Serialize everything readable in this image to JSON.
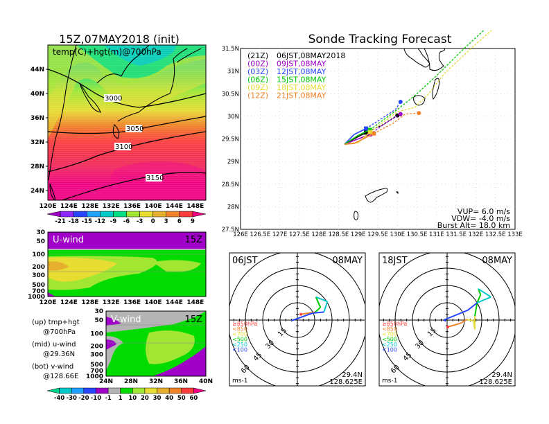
{
  "left_top": {
    "title": "15Z,07MAY2018 (init)",
    "subtitle": "temp(C)+hgt(m)@700hPa",
    "lat_labels": [
      "44N",
      "40N",
      "36N",
      "32N",
      "28N",
      "24N"
    ],
    "lon_labels": [
      "120E",
      "124E",
      "128E",
      "132E",
      "136E",
      "140E",
      "144E",
      "148E"
    ],
    "contours": [
      "3000",
      "3050",
      "3100",
      "3150"
    ],
    "colorbar": {
      "labels": [
        "-21",
        "-18",
        "-15",
        "-12",
        "-9",
        "-6",
        "-3",
        "0",
        "3",
        "6",
        "9"
      ],
      "colors": [
        "#a000c8",
        "#8c28ff",
        "#2846ff",
        "#1ea0ff",
        "#00c8c8",
        "#00dc82",
        "#a0e632",
        "#e6dc32",
        "#e6af2d",
        "#f08228",
        "#fa3c3c",
        "#f00082"
      ]
    }
  },
  "u_wind": {
    "label": "U-wind",
    "time": "15Z",
    "y_labels": [
      "30",
      "50",
      "100",
      "200",
      "300",
      "500",
      "700",
      "1000"
    ],
    "x_labels": [
      "120E",
      "124E",
      "128E",
      "132E",
      "136E",
      "140E",
      "144E",
      "148E"
    ]
  },
  "v_wind": {
    "label": "V-wind",
    "time": "15Z",
    "y_labels": [
      "30",
      "50",
      "100",
      "200",
      "300",
      "500",
      "700",
      "1000"
    ],
    "x_labels": [
      "24N",
      "28N",
      "32N",
      "36N",
      "40N"
    ]
  },
  "notes": [
    {
      "a": "(up) tmp+hgt",
      "b": "@700hPa"
    },
    {
      "a": "(mid) u-wind",
      "b": "@29.36N"
    },
    {
      "a": "(bot) v-wind",
      "b": "@128.66E"
    }
  ],
  "wind_colorbar": {
    "labels": [
      "-40",
      "-30",
      "-20",
      "-10",
      "-1",
      "1",
      "10",
      "20",
      "30",
      "40",
      "50",
      "60"
    ],
    "colors": [
      "#00d28c",
      "#00c8c8",
      "#1ea0ff",
      "#2846ff",
      "#a000c8",
      "#b4b4b4",
      "#00dc00",
      "#a0e632",
      "#e6dc32",
      "#e6af2d",
      "#f08228",
      "#fa3c3c",
      "#f00082"
    ]
  },
  "sonde": {
    "title": "Sonde Tracking Forecast",
    "lat_labels": [
      "31.5N",
      "31N",
      "30.5N",
      "30N",
      "29.5N",
      "29N",
      "28.5N",
      "28N",
      "27.5N"
    ],
    "lon_labels": [
      "126E",
      "126.5E",
      "127E",
      "127.5E",
      "128E",
      "128.5E",
      "129E",
      "129.5E",
      "130E",
      "130.5E",
      "131E",
      "131.5E",
      "132E",
      "132.5E",
      "133E"
    ],
    "legend": [
      {
        "code": "(21Z)",
        "time": "06JST,08MAY2018",
        "color": "#000000"
      },
      {
        "code": "(00Z)",
        "time": "09JST,08MAY",
        "color": "#a000c8"
      },
      {
        "code": "(03Z)",
        "time": "12JST,08MAY",
        "color": "#2846ff"
      },
      {
        "code": "(06Z)",
        "time": "15JST,08MAY",
        "color": "#00c800"
      },
      {
        "code": "(09Z)",
        "time": "18JST,08MAY",
        "color": "#e6dc32"
      },
      {
        "code": "(12Z)",
        "time": "21JST,08MAY",
        "color": "#f08228"
      }
    ],
    "tracks": [
      {
        "color": "#000000",
        "end": "dot",
        "pts": [
          [
            128.65,
            29.38
          ],
          [
            129.0,
            29.55
          ],
          [
            129.2,
            29.64
          ],
          [
            129.6,
            29.8
          ],
          [
            130.0,
            30.02
          ]
        ]
      },
      {
        "color": "#a000c8",
        "end": "dot",
        "pts": [
          [
            128.65,
            29.38
          ],
          [
            129.0,
            29.5
          ],
          [
            129.3,
            29.6
          ],
          [
            129.7,
            29.85
          ],
          [
            130.08,
            30.05
          ]
        ]
      },
      {
        "color": "#2846ff",
        "end": "dot",
        "pts": [
          [
            128.65,
            29.38
          ],
          [
            128.9,
            29.6
          ],
          [
            129.2,
            29.73
          ],
          [
            129.6,
            29.95
          ],
          [
            129.95,
            30.15
          ],
          [
            130.08,
            30.32
          ]
        ]
      },
      {
        "color": "#00c800",
        "end": "none",
        "pts": [
          [
            128.65,
            29.38
          ],
          [
            129.0,
            29.58
          ],
          [
            129.3,
            29.7
          ],
          [
            130.0,
            30.15
          ],
          [
            130.5,
            30.5
          ],
          [
            131.0,
            30.9
          ],
          [
            131.7,
            31.5
          ],
          [
            132.2,
            31.9
          ]
        ]
      },
      {
        "color": "#e6dc32",
        "end": "none",
        "pts": [
          [
            128.65,
            29.38
          ],
          [
            129.0,
            29.42
          ],
          [
            129.3,
            29.65
          ],
          [
            130.0,
            30.1
          ],
          [
            130.45,
            30.2
          ],
          [
            130.8,
            30.5
          ],
          [
            131.2,
            30.95
          ],
          [
            132.0,
            31.6
          ],
          [
            132.4,
            31.9
          ]
        ]
      },
      {
        "color": "#f08228",
        "end": "dot",
        "pts": [
          [
            128.65,
            29.38
          ],
          [
            128.9,
            29.4
          ],
          [
            129.4,
            29.62
          ],
          [
            129.9,
            29.85
          ],
          [
            130.2,
            30.05
          ],
          [
            130.55,
            30.07
          ]
        ]
      }
    ],
    "params": [
      "VUP=  6.0  m/s",
      "VDW=  -4.0  m/s",
      "Burst Alt=  18.0  km"
    ]
  },
  "hodographs": [
    {
      "time": "06JST",
      "date": "08MAY",
      "unit": "ms-1",
      "lat": "29.4N",
      "lon": "128.625E",
      "pts": [
        [
          3,
          5,
          "#fa3c3c"
        ],
        [
          15.6,
          7,
          "#f08228"
        ],
        [
          20,
          11,
          "#00c800"
        ],
        [
          16,
          20,
          "#00c800"
        ],
        [
          26,
          16,
          "#00c8c8"
        ],
        [
          23,
          7,
          "#00c8c8"
        ],
        [
          13,
          6,
          "#2846ff"
        ],
        [
          -5,
          -0.5,
          "#2846ff"
        ]
      ]
    },
    {
      "time": "18JST",
      "date": "08MAY",
      "unit": "ms-1",
      "lat": "29.4N",
      "lon": "128.625E",
      "pts": [
        [
          0.6,
          -6,
          "#fa3c3c"
        ],
        [
          12,
          -2.6,
          "#f08228"
        ],
        [
          17,
          0.6,
          "#f08228"
        ],
        [
          23,
          -0.6,
          "#e6dc32"
        ],
        [
          24,
          -8,
          "#e6dc32"
        ],
        [
          24,
          3.4,
          "#e6dc32"
        ],
        [
          26,
          15,
          "#00c800"
        ],
        [
          29,
          22,
          "#00c800"
        ],
        [
          27,
          27,
          "#00c800"
        ],
        [
          38,
          20,
          "#00c8c8"
        ],
        [
          26,
          15,
          "#00c8c8"
        ],
        [
          18,
          8.6,
          "#2846ff"
        ],
        [
          -3,
          0,
          "#2846ff"
        ],
        [
          -1,
          -1,
          "#2846ff"
        ]
      ]
    }
  ],
  "hodo_rings": [
    "15",
    "30",
    "45",
    "60"
  ],
  "hodo_legend": [
    {
      "text": "≥850hPa",
      "color": "#fa3c3c"
    },
    {
      "text": "<850",
      "color": "#f08228"
    },
    {
      "text": "<700",
      "color": "#e6dc32"
    },
    {
      "text": "<500",
      "color": "#00c800"
    },
    {
      "text": "<250",
      "color": "#00c8c8"
    },
    {
      "text": "<100",
      "color": "#2846ff"
    }
  ]
}
